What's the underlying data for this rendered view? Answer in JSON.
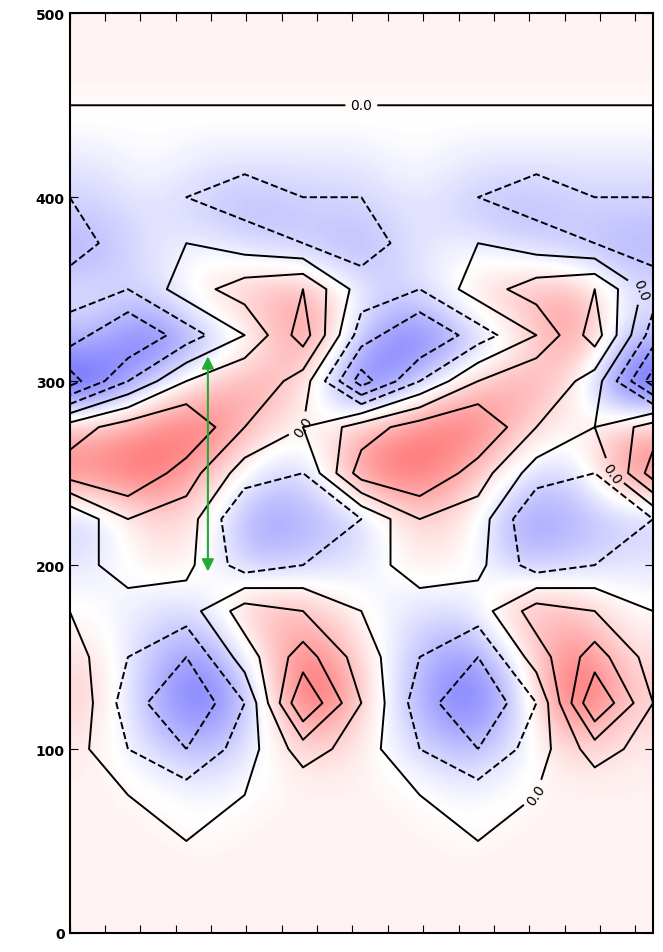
{
  "chart_data": {
    "type": "contour",
    "xlim": [
      0,
      330
    ],
    "xticks": [
      0,
      20,
      40,
      60,
      80,
      100,
      120,
      140,
      160,
      180,
      200,
      220,
      240,
      260,
      280,
      300,
      320
    ],
    "ylim": [
      0,
      500
    ],
    "yticks": [
      0,
      100,
      200,
      300,
      400,
      500
    ],
    "tick_labels": "y",
    "x": [
      0,
      33,
      66,
      99,
      132,
      165,
      198,
      231,
      264,
      297,
      330
    ],
    "y": [
      0,
      25,
      50,
      75,
      100,
      125,
      150,
      175,
      200,
      225,
      250,
      275,
      300,
      325,
      350,
      375,
      400,
      425,
      450,
      475,
      500
    ],
    "cells": [
      [
        0.05,
        0.05,
        0.05,
        0.05,
        0.05,
        0.05,
        0.05,
        0.05,
        0.05,
        0.05,
        0.05
      ],
      [
        0.05,
        0.05,
        0.05,
        0.05,
        0.05,
        0.05,
        0.05,
        0.05,
        0.05,
        0.05,
        0.05
      ],
      [
        0.05,
        0.05,
        0.0,
        0.05,
        0.05,
        0.05,
        0.05,
        0.0,
        0.05,
        0.05,
        0.05
      ],
      [
        0.05,
        0.0,
        -0.1,
        0.0,
        0.05,
        0.05,
        0.0,
        -0.1,
        0.0,
        0.05,
        0.05
      ],
      [
        0.1,
        -0.2,
        -0.4,
        -0.1,
        0.3,
        0.1,
        -0.2,
        -0.4,
        -0.1,
        0.3,
        0.1
      ],
      [
        0.2,
        -0.3,
        -0.6,
        -0.2,
        0.8,
        0.2,
        -0.3,
        -0.6,
        -0.2,
        0.8,
        0.2
      ],
      [
        0.1,
        -0.2,
        -0.4,
        0.1,
        0.5,
        0.1,
        -0.2,
        -0.4,
        0.1,
        0.5,
        0.1
      ],
      [
        0.0,
        -0.1,
        -0.1,
        0.3,
        0.2,
        0.0,
        -0.1,
        -0.1,
        0.3,
        0.2,
        0.0
      ],
      [
        -0.1,
        0.1,
        0.05,
        -0.3,
        -0.2,
        -0.1,
        0.1,
        0.05,
        -0.3,
        -0.2,
        -0.1
      ],
      [
        -0.2,
        0.2,
        0.1,
        -0.4,
        -0.3,
        -0.2,
        0.2,
        0.1,
        -0.4,
        -0.3,
        -0.2
      ],
      [
        0.5,
        0.6,
        0.3,
        -0.1,
        -0.2,
        0.5,
        0.6,
        0.3,
        -0.1,
        -0.2,
        0.5
      ],
      [
        0.3,
        0.5,
        0.6,
        0.2,
        0.0,
        0.3,
        0.5,
        0.6,
        0.2,
        0.0,
        0.3
      ],
      [
        -0.7,
        -0.2,
        0.2,
        0.4,
        0.1,
        -0.7,
        -0.2,
        0.2,
        0.4,
        0.1,
        -0.7
      ],
      [
        -0.3,
        -0.6,
        -0.3,
        0.0,
        0.5,
        -0.3,
        -0.6,
        -0.3,
        0.0,
        0.5,
        -0.3
      ],
      [
        -0.1,
        -0.2,
        0.1,
        0.3,
        0.4,
        -0.1,
        -0.2,
        0.1,
        0.3,
        0.4,
        -0.1
      ],
      [
        -0.3,
        -0.1,
        0.0,
        -0.1,
        -0.2,
        -0.3,
        -0.1,
        0.0,
        -0.1,
        -0.2,
        -0.3
      ],
      [
        -0.2,
        -0.1,
        -0.2,
        -0.3,
        -0.2,
        -0.2,
        -0.1,
        -0.2,
        -0.3,
        -0.2,
        -0.2
      ],
      [
        -0.1,
        0.0,
        -0.1,
        -0.1,
        -0.1,
        -0.1,
        0.0,
        -0.1,
        -0.1,
        -0.1,
        -0.1
      ],
      [
        0.0,
        0.0,
        0.0,
        0.0,
        0.0,
        0.0,
        0.0,
        0.0,
        0.0,
        0.0,
        0.0
      ],
      [
        0.05,
        0.05,
        0.05,
        0.05,
        0.05,
        0.05,
        0.05,
        0.05,
        0.05,
        0.05,
        0.05
      ],
      [
        0.05,
        0.05,
        0.05,
        0.05,
        0.05,
        0.05,
        0.05,
        0.05,
        0.05,
        0.05,
        0.05
      ]
    ],
    "color_range": [
      -1,
      1
    ],
    "contour_levels": [
      -0.6,
      -0.4,
      -0.2,
      0.0,
      0.2,
      0.4,
      0.6
    ],
    "contour_label": {
      "value": 0.0,
      "label": "0.0"
    },
    "color": "black"
  }
}
